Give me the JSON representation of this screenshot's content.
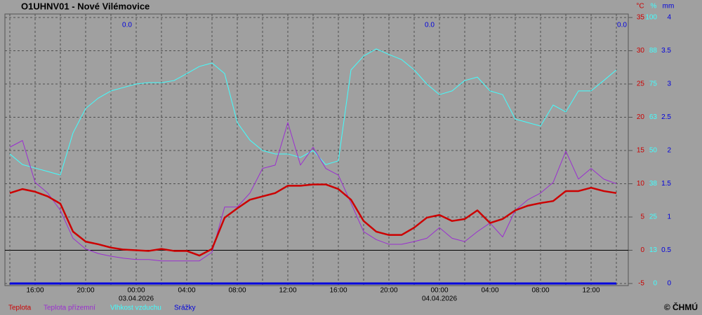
{
  "chart_data": {
    "type": "line",
    "title": "O1UHNV01 - Nové Vilémovice",
    "categories": [
      null,
      null,
      "16:00",
      null,
      null,
      null,
      "20:00",
      null,
      null,
      null,
      "00:00",
      null,
      null,
      null,
      "04:00",
      null,
      null,
      null,
      "08:00",
      null,
      null,
      null,
      "12:00",
      null,
      null,
      null,
      "16:00",
      null,
      null,
      null,
      "20:00",
      null,
      null,
      null,
      "00:00",
      null,
      null,
      null,
      "04:00",
      null,
      null,
      null,
      "08:00",
      null,
      null,
      null,
      "12:00",
      null,
      null
    ],
    "date_labels": [
      null,
      null,
      null,
      null,
      null,
      null,
      null,
      null,
      null,
      null,
      "03.04.2026",
      null,
      null,
      null,
      null,
      null,
      null,
      null,
      null,
      null,
      null,
      null,
      null,
      null,
      null,
      null,
      null,
      null,
      null,
      null,
      null,
      null,
      null,
      null,
      "04.04.2026",
      null,
      null,
      null,
      null,
      null,
      null,
      null,
      null,
      null,
      null,
      null,
      null,
      null,
      null
    ],
    "ylabel": "°C",
    "ylim": [
      -5,
      35
    ],
    "yticks": [
      -5,
      0,
      5,
      10,
      15,
      20,
      25,
      30,
      35
    ],
    "y2label": "%",
    "y2lim": [
      0,
      100
    ],
    "y2ticks": [
      0,
      {
        "value": 12.5,
        "label": "13"
      },
      25,
      {
        "value": 37.5,
        "label": "38"
      },
      50,
      {
        "value": 62.5,
        "label": "63"
      },
      75,
      {
        "value": 87.5,
        "label": "88"
      },
      100
    ],
    "y3label": "mm",
    "y3lim": [
      0,
      4
    ],
    "y3ticks": [
      0,
      0.5,
      1,
      1.5,
      2,
      2.5,
      3,
      3.5,
      4
    ],
    "grid": true,
    "annotations": [
      "0.0",
      "0.0",
      "0.0"
    ],
    "series": [
      {
        "name": "Teplota",
        "color": "#cc0000",
        "axis": "y",
        "values": [
          8.6,
          9.2,
          8.8,
          8.1,
          7,
          2.8,
          1.3,
          0.9,
          0.4,
          0.1,
          0,
          -0.1,
          0.2,
          -0.1,
          -0.1,
          -0.8,
          0.2,
          4.9,
          6.3,
          7.6,
          8.1,
          8.6,
          9.7,
          9.7,
          9.9,
          9.9,
          9.2,
          7.6,
          4.4,
          2.8,
          2.3,
          2.3,
          3.4,
          4.9,
          5.3,
          4.4,
          4.7,
          6,
          4.1,
          4.7,
          6,
          6.7,
          7.1,
          7.4,
          8.9,
          8.9,
          9.4,
          8.9,
          8.6
        ]
      },
      {
        "name": "Teplota přízemní",
        "color": "#9a2ed0",
        "axis": "y",
        "values": [
          15.5,
          16.5,
          10.2,
          8.6,
          6,
          1.8,
          0.2,
          -0.5,
          -0.9,
          -1.2,
          -1.4,
          -1.4,
          -1.6,
          -1.6,
          -1.6,
          -1.6,
          -0.3,
          6.5,
          6.5,
          8.6,
          12.3,
          12.8,
          19.2,
          12.8,
          15.5,
          12.3,
          11.3,
          7.1,
          2.8,
          1.6,
          0.9,
          0.9,
          1.3,
          1.8,
          3.4,
          1.8,
          1.3,
          2.8,
          4.1,
          2,
          6,
          7.6,
          8.6,
          10.2,
          14.9,
          10.7,
          12.3,
          10.7,
          10
        ]
      },
      {
        "name": "Vlhkost vzduchu",
        "color": "#40ffff",
        "axis": "y2",
        "values": [
          48.7,
          44.7,
          43.4,
          42.1,
          40.8,
          56.6,
          65.8,
          69.7,
          72.4,
          73.7,
          75,
          75.5,
          75.5,
          76.3,
          78.9,
          81.6,
          82.9,
          78.9,
          60.5,
          53.9,
          50,
          48.7,
          48.7,
          47.4,
          50,
          44.7,
          46.1,
          80.3,
          85.5,
          88.2,
          86.1,
          84.2,
          80.3,
          75,
          71,
          72.4,
          76.3,
          77.6,
          72.4,
          71,
          61.8,
          60.5,
          59.2,
          67.1,
          64.5,
          72.4,
          72.4,
          76.3,
          80.3
        ]
      },
      {
        "name": "Srážky",
        "color": "#0000dd",
        "axis": "y3",
        "values": [
          0,
          0,
          0,
          0,
          0,
          0,
          0,
          0,
          0,
          0,
          0,
          0,
          0,
          0,
          0,
          0,
          0,
          0,
          0,
          0,
          0,
          0,
          0,
          0,
          0,
          0,
          0,
          0,
          0,
          0,
          0,
          0,
          0,
          0,
          0,
          0,
          0,
          0,
          0,
          0,
          0,
          0,
          0,
          0,
          0,
          0,
          0,
          0,
          0
        ]
      }
    ],
    "credit": "© ČHMÚ"
  }
}
